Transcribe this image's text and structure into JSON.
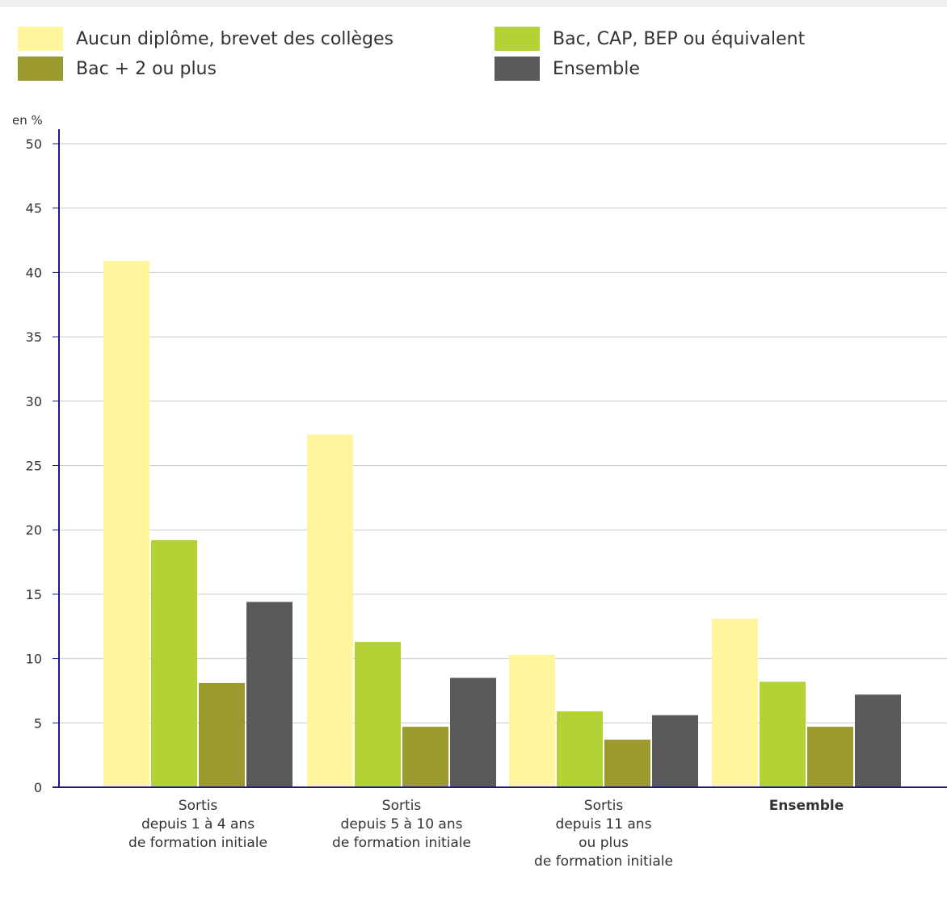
{
  "colors": {
    "series": [
      "#fff59d",
      "#b2d235",
      "#9a9a2f",
      "#5a5a5a"
    ],
    "grid": "#cccccc",
    "axis": "#1a1a8c"
  },
  "legend": [
    {
      "label": "Aucun diplôme, brevet des collèges"
    },
    {
      "label": "Bac, CAP, BEP ou équivalent"
    },
    {
      "label": "Bac + 2 ou plus"
    },
    {
      "label": "Ensemble"
    }
  ],
  "chart_data": {
    "type": "bar",
    "ylabel": "en %",
    "ylim": [
      0,
      50
    ],
    "yticks": [
      0,
      5,
      10,
      15,
      20,
      25,
      30,
      35,
      40,
      45,
      50
    ],
    "grid": true,
    "legend_position": "top",
    "categories": [
      {
        "lines": [
          "Sortis",
          "depuis 1 à 4 ans",
          "de formation initiale"
        ],
        "bold": false
      },
      {
        "lines": [
          "Sortis",
          "depuis 5 à 10 ans",
          "de formation initiale"
        ],
        "bold": false
      },
      {
        "lines": [
          "Sortis",
          "depuis 11 ans",
          "ou plus",
          "de formation initiale"
        ],
        "bold": false
      },
      {
        "lines": [
          "Ensemble"
        ],
        "bold": true
      }
    ],
    "series": [
      {
        "name": "Aucun diplôme, brevet des collèges",
        "values": [
          40.9,
          27.4,
          10.3,
          13.1
        ]
      },
      {
        "name": "Bac, CAP, BEP ou équivalent",
        "values": [
          19.2,
          11.3,
          5.9,
          8.2
        ]
      },
      {
        "name": "Bac + 2 ou plus",
        "values": [
          8.1,
          4.7,
          3.7,
          4.7
        ]
      },
      {
        "name": "Ensemble",
        "values": [
          14.4,
          8.5,
          5.6,
          7.2
        ]
      }
    ]
  }
}
